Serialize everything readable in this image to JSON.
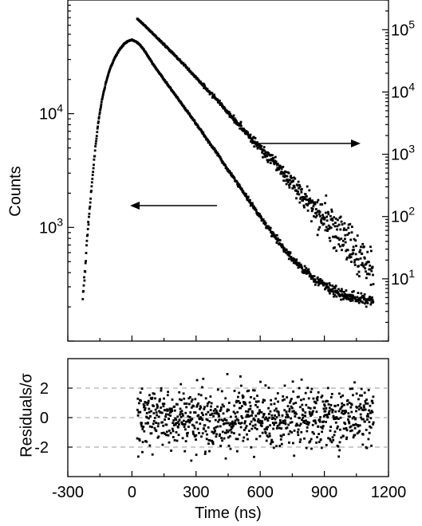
{
  "chart_data": [
    {
      "type": "scatter",
      "panel": "decay",
      "xlabel": "",
      "ylabel": "Counts",
      "xlim": [
        -300,
        1200
      ],
      "y_left": {
        "scale": "log",
        "range": [
          100,
          100000
        ],
        "tick_labels": [
          {
            "base": "10",
            "exp": "4",
            "value": 10000
          },
          {
            "base": "10",
            "exp": "3",
            "value": 1000
          }
        ]
      },
      "y_right": {
        "scale": "log",
        "range": [
          1,
          300000
        ],
        "tick_labels": [
          {
            "base": "10",
            "exp": "5",
            "value": 100000
          },
          {
            "base": "10",
            "exp": "4",
            "value": 10000
          },
          {
            "base": "10",
            "exp": "3",
            "value": 1000
          },
          {
            "base": "10",
            "exp": "2",
            "value": 100
          },
          {
            "base": "10",
            "exp": "1",
            "value": 10
          }
        ]
      },
      "series": [
        {
          "axis": "left",
          "x": [
            -230,
            -225,
            -220,
            -215,
            -210,
            -200,
            -190,
            -180,
            -170,
            -160,
            -150,
            -140,
            -120,
            -100,
            -80,
            -60,
            -40,
            -20,
            0,
            20,
            40,
            60,
            80,
            100,
            150,
            200,
            250,
            300,
            350,
            400,
            450,
            500,
            550,
            600,
            650,
            700,
            750,
            800,
            850,
            900,
            950,
            1000,
            1050,
            1100,
            1130
          ],
          "y": [
            240,
            300,
            400,
            550,
            800,
            1300,
            2100,
            3400,
            5300,
            7600,
            10300,
            13300,
            19400,
            25600,
            31000,
            36200,
            40400,
            43500,
            44600,
            43000,
            39800,
            35500,
            31000,
            27000,
            20000,
            14800,
            11000,
            8200,
            6000,
            4400,
            3200,
            2350,
            1700,
            1250,
            920,
            690,
            530,
            430,
            360,
            310,
            270,
            250,
            240,
            230,
            230
          ]
        },
        {
          "axis": "right",
          "x": [
            25,
            50,
            100,
            150,
            200,
            250,
            300,
            350,
            400,
            450,
            500,
            550,
            600,
            650,
            700,
            750,
            800,
            850,
            900,
            950,
            1000,
            1050,
            1100,
            1130
          ],
          "y": [
            150000,
            125000,
            85000,
            58000,
            39000,
            26000,
            17000,
            11200,
            7300,
            4700,
            3000,
            1950,
            1270,
            820,
            530,
            345,
            225,
            145,
            94,
            61,
            39,
            25,
            17,
            13
          ]
        }
      ],
      "annotations": [
        {
          "type": "arrow",
          "direction": "left",
          "refers_to": "left axis"
        },
        {
          "type": "arrow",
          "direction": "right",
          "refers_to": "right axis"
        }
      ]
    },
    {
      "type": "scatter",
      "panel": "residuals",
      "xlabel": "Time (ns)",
      "ylabel": "Residuals/σ",
      "xlim": [
        -300,
        1200
      ],
      "ylim": [
        -4,
        4
      ],
      "x_ticks": [
        "-300",
        "0",
        "300",
        "600",
        "900",
        "1200"
      ],
      "x_tick_values": [
        -300,
        0,
        300,
        600,
        900,
        1200
      ],
      "y_ticks": [
        "2",
        "0",
        "-2"
      ],
      "y_tick_values": [
        2,
        0,
        -2
      ],
      "reference_lines": [
        2,
        0,
        -2
      ],
      "series": [
        {
          "x_range": [
            25,
            1130
          ],
          "distribution": "random scatter around 0, mostly within ±3"
        }
      ]
    }
  ]
}
